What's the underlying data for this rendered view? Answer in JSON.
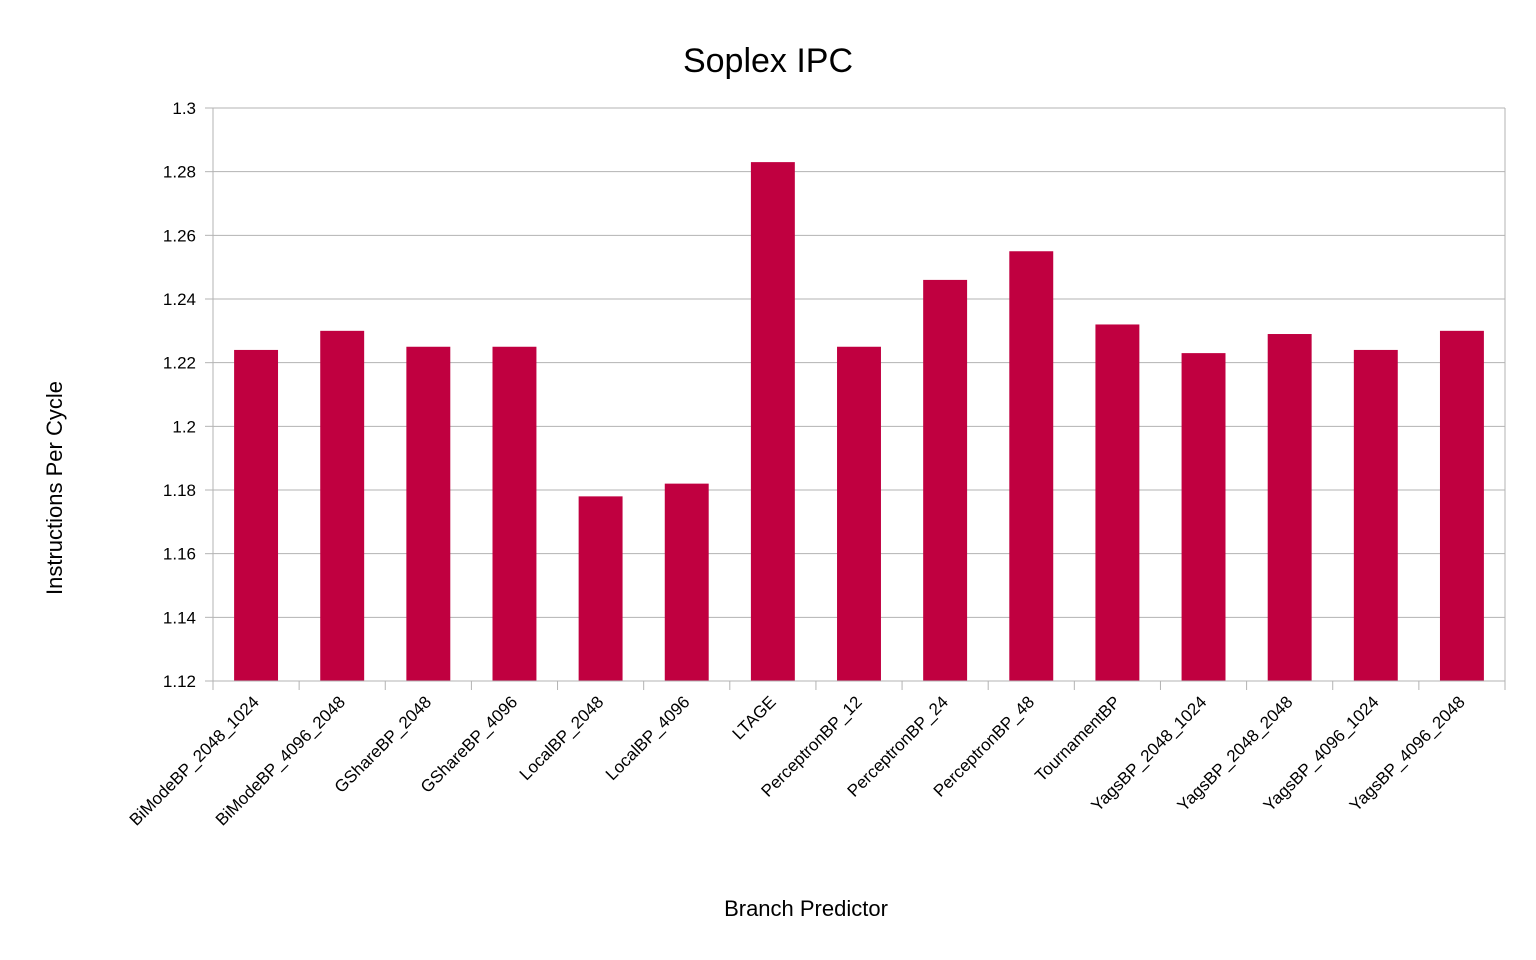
{
  "chart_data": {
    "type": "bar",
    "title": "Soplex IPC",
    "xlabel": "Branch Predictor",
    "ylabel": "Instructions Per Cycle",
    "categories": [
      "BiModeBP_2048_1024",
      "BiModeBP_4096_2048",
      "GShareBP_2048",
      "GShareBP_4096",
      "LocalBP_2048",
      "LocalBP_4096",
      "LTAGE",
      "PerceptronBP_12",
      "PerceptronBP_24",
      "PerceptronBP_48",
      "TournamentBP",
      "YagsBP_2048_1024",
      "YagsBP_2048_2048",
      "YagsBP_4096_1024",
      "YagsBP_4096_2048"
    ],
    "values": [
      1.224,
      1.23,
      1.225,
      1.225,
      1.178,
      1.182,
      1.283,
      1.225,
      1.246,
      1.255,
      1.232,
      1.223,
      1.229,
      1.224,
      1.23
    ],
    "ylim": [
      1.12,
      1.3
    ],
    "yticks": [
      "1.12",
      "1.14",
      "1.16",
      "1.18",
      "1.2",
      "1.22",
      "1.24",
      "1.26",
      "1.28",
      "1.3"
    ],
    "grid": true,
    "legend": "none",
    "bar_color": "#c00040",
    "grid_color": "#b3b3b3"
  }
}
